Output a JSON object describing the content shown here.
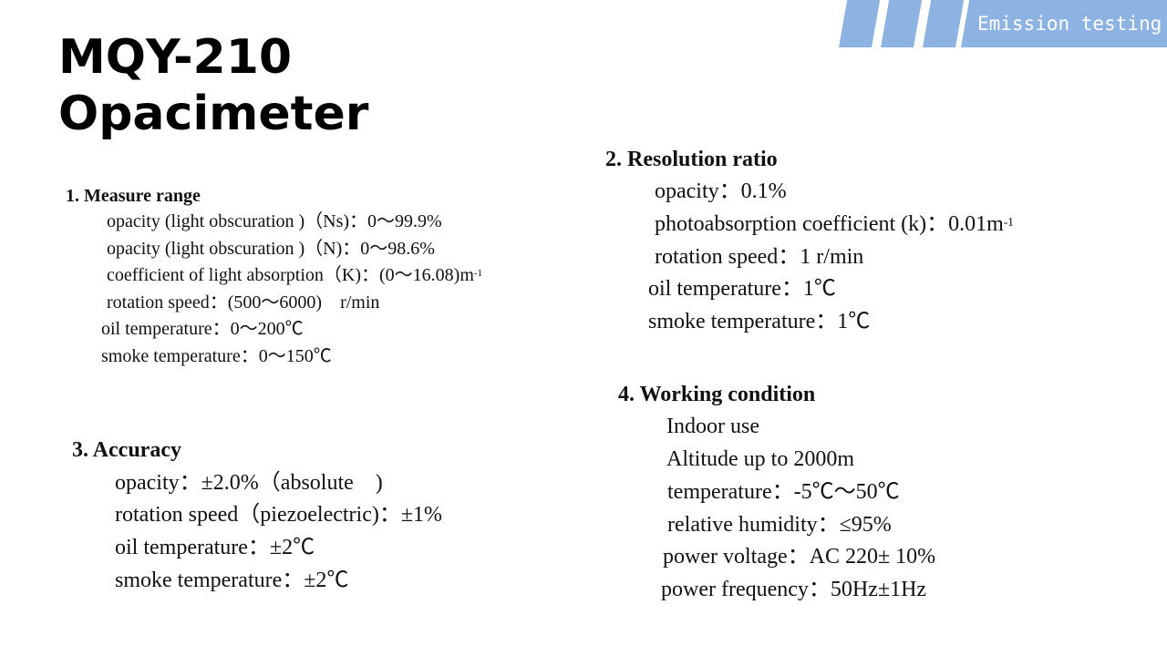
{
  "header": {
    "tag": "Emission testing",
    "title_line1": "MQY-210",
    "title_line2": "Opacimeter",
    "accent_color": "#8db3e2"
  },
  "measure_range": {
    "heading": "1. Measure range",
    "items": [
      "opacity (light obscuration )（Ns)：0～99.9%",
      "opacity (light obscuration )（N)：0～98.6%",
      "coefficient of light absorption（K)：(0～16.08)m",
      "rotation speed：(500～6000)　r/min",
      "oil temperature：0～200℃",
      "smoke temperature：0～150℃"
    ],
    "superscript": "-1"
  },
  "resolution": {
    "heading": "2. Resolution ratio",
    "items": [
      "opacity：0.1%",
      "photoabsorption coefficient (k)：0.01m",
      "rotation speed：1 r/min",
      "oil temperature：1℃",
      "smoke temperature：1℃"
    ],
    "superscript": "-1"
  },
  "accuracy": {
    "heading": "3. Accuracy",
    "items": [
      "opacity：±2.0%（absolute　)",
      "rotation speed（piezoelectric)：±1%",
      "oil temperature：±2℃",
      "smoke temperature：±2℃"
    ]
  },
  "working": {
    "heading": "4. Working condition",
    "items": [
      "Indoor use",
      "Altitude up to 2000m",
      "temperature：-5℃～50℃",
      "relative humidity：≤95%",
      "power voltage：AC 220± 10%",
      "power frequency：50Hz±1Hz"
    ]
  }
}
